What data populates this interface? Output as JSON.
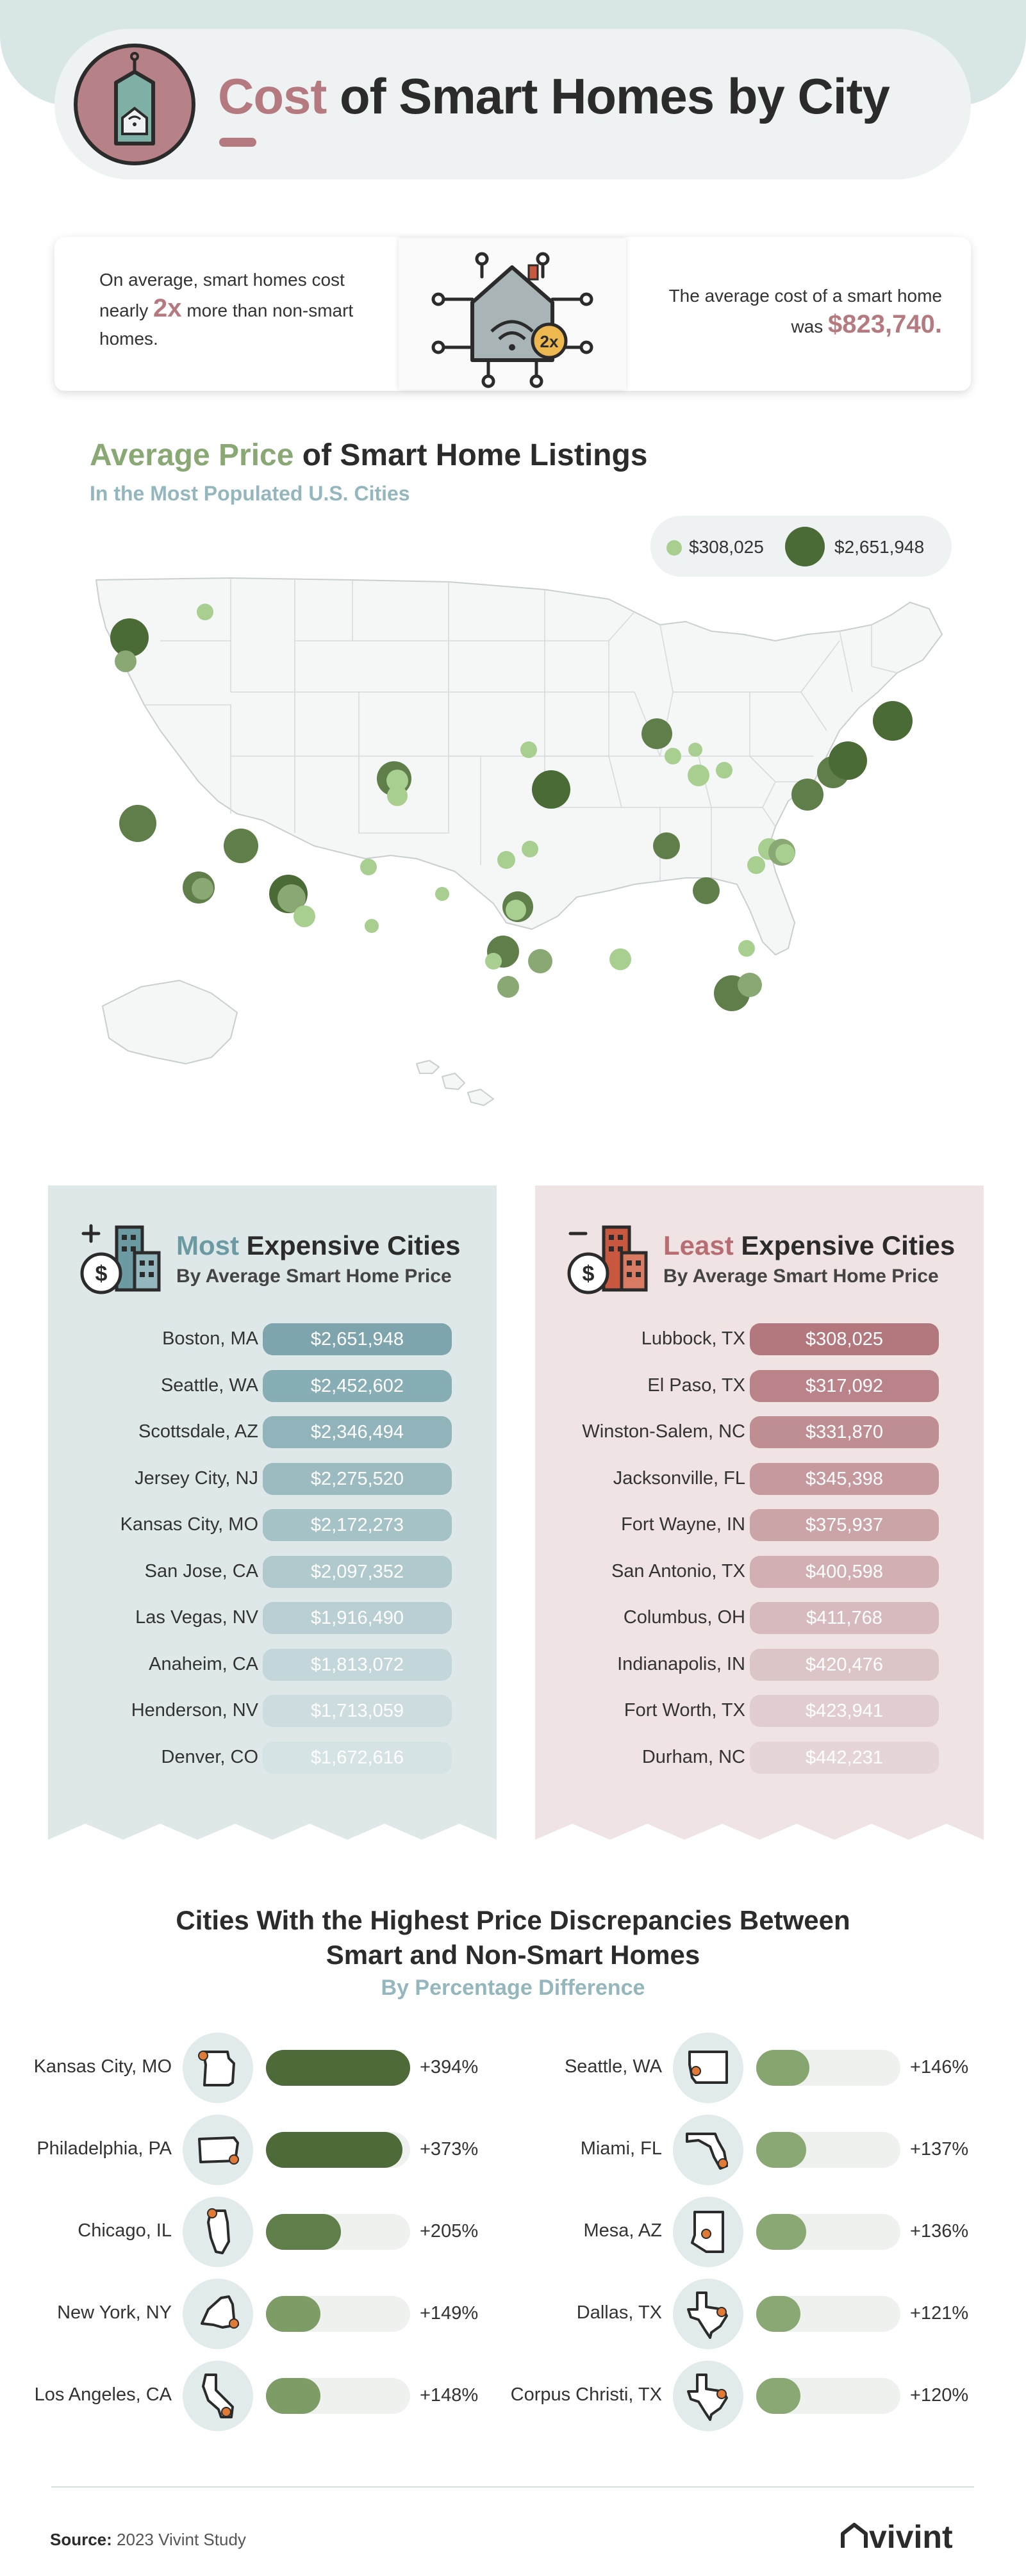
{
  "header": {
    "title_accent": "Cost",
    "title_rest": " of Smart Homes by City",
    "icon": "price-tag-smart-home-icon"
  },
  "stats": {
    "left_pre": "On average, smart homes cost nearly ",
    "left_big": "2x",
    "left_post": " more than non-smart homes.",
    "badge": "2x",
    "right_pre": "The average cost of a smart home was ",
    "right_big": "$823,740."
  },
  "map": {
    "title_accent": "Average Price",
    "title_rest": " of Smart Home Listings",
    "subtitle": "In the Most Populated U.S. Cities",
    "legend_min": "$308,025",
    "legend_max": "$2,651,948"
  },
  "most": {
    "title_accent": "Most",
    "title_rest": " Expensive Cities",
    "subtitle": "By Average Smart Home Price",
    "rows": [
      {
        "city": "Boston, MA",
        "price": "$2,651,948",
        "color": "#7ea5ad"
      },
      {
        "city": "Seattle, WA",
        "price": "$2,452,602",
        "color": "#87adb5"
      },
      {
        "city": "Scottsdale, AZ",
        "price": "$2,346,494",
        "color": "#91b4bb"
      },
      {
        "city": "Jersey City, NJ",
        "price": "$2,275,520",
        "color": "#9bbbc1"
      },
      {
        "city": "Kansas City, MO",
        "price": "$2,172,273",
        "color": "#a5c2c7"
      },
      {
        "city": "San Jose, CA",
        "price": "$2,097,352",
        "color": "#afc9cd"
      },
      {
        "city": "Las Vegas, NV",
        "price": "$1,916,490",
        "color": "#b9cfd3"
      },
      {
        "city": "Anaheim, CA",
        "price": "$1,813,072",
        "color": "#c3d6d9"
      },
      {
        "city": "Henderson, NV",
        "price": "$1,713,059",
        "color": "#cddcdf"
      },
      {
        "city": "Denver, CO",
        "price": "$1,672,616",
        "color": "#d6e3e5"
      }
    ]
  },
  "least": {
    "title_accent": "Least",
    "title_rest": " Expensive Cities",
    "subtitle": "By Average Smart Home Price",
    "rows": [
      {
        "city": "Lubbock, TX",
        "price": "$308,025",
        "color": "#b2787e"
      },
      {
        "city": "El Paso, TX",
        "price": "$317,092",
        "color": "#b98389"
      },
      {
        "city": "Winston-Salem, NC",
        "price": "$331,870",
        "color": "#bf8e93"
      },
      {
        "city": "Jacksonville, FL",
        "price": "$345,398",
        "color": "#c5999e"
      },
      {
        "city": "Fort Wayne, IN",
        "price": "$375,937",
        "color": "#cba4a8"
      },
      {
        "city": "San Antonio, TX",
        "price": "$400,598",
        "color": "#d1afb2"
      },
      {
        "city": "Columbus, OH",
        "price": "$411,768",
        "color": "#d6babd"
      },
      {
        "city": "Indianapolis, IN",
        "price": "$420,476",
        "color": "#dcc5c7"
      },
      {
        "city": "Fort Worth, TX",
        "price": "$423,941",
        "color": "#e1cdcf"
      },
      {
        "city": "Durham, NC",
        "price": "$442,231",
        "color": "#e6d5d7"
      }
    ]
  },
  "discrepancy": {
    "title_line1": "Cities With the Highest Price Discrepancies Between",
    "title_line2": "Smart and Non-Smart Homes",
    "subtitle": "By Percentage Difference",
    "left": [
      {
        "city": "Kansas City, MO",
        "pct": "+394%",
        "value": 394,
        "state_icon": "missouri-icon",
        "color": "#4e6a38"
      },
      {
        "city": "Philadelphia, PA",
        "pct": "+373%",
        "value": 373,
        "state_icon": "pennsylvania-icon",
        "color": "#4e6a38"
      },
      {
        "city": "Chicago, IL",
        "pct": "+205%",
        "value": 205,
        "state_icon": "illinois-icon",
        "color": "#5f7e49"
      },
      {
        "city": "New York, NY",
        "pct": "+149%",
        "value": 149,
        "state_icon": "new-york-icon",
        "color": "#7e9c66"
      },
      {
        "city": "Los Angeles, CA",
        "pct": "+148%",
        "value": 148,
        "state_icon": "california-icon",
        "color": "#7e9c66"
      }
    ],
    "right": [
      {
        "city": "Seattle, WA",
        "pct": "+146%",
        "value": 146,
        "state_icon": "washington-icon",
        "color": "#87a56f"
      },
      {
        "city": "Miami, FL",
        "pct": "+137%",
        "value": 137,
        "state_icon": "florida-icon",
        "color": "#8aa874"
      },
      {
        "city": "Mesa, AZ",
        "pct": "+136%",
        "value": 136,
        "state_icon": "arizona-icon",
        "color": "#8aa874"
      },
      {
        "city": "Dallas, TX",
        "pct": "+121%",
        "value": 121,
        "state_icon": "texas-icon",
        "color": "#8aa874"
      },
      {
        "city": "Corpus Christi, TX",
        "pct": "+120%",
        "value": 120,
        "state_icon": "texas-icon",
        "color": "#8aa874"
      }
    ]
  },
  "footer": {
    "source_label": "Source:",
    "source_text": " 2023 Vivint Study",
    "logo": "vivint"
  },
  "colors": {
    "accent_rose": "#b57a80",
    "accent_green": "#8aa874",
    "accent_teal": "#93b7bd",
    "dot_small": "#a8cf90",
    "dot_big": "#4a6b36"
  }
}
